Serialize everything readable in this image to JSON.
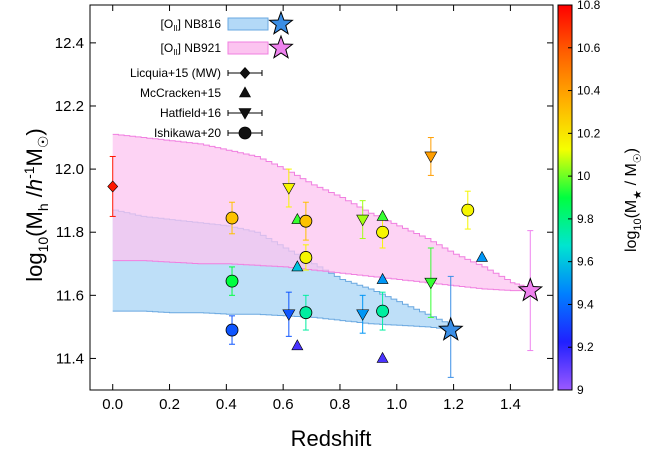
{
  "chart_data": {
    "type": "scatter",
    "xlabel": "Redshift",
    "ylabel_parts": {
      "a": "log",
      "b": "10",
      "c": "(M",
      "d": "h",
      "e": " /",
      "f": "h",
      "g": "-1",
      "h": "M",
      "i": "☉",
      "j": ")"
    },
    "xlim": [
      -0.08,
      1.55
    ],
    "ylim": [
      11.3,
      12.52
    ],
    "xticks": [
      "0.0",
      "0.2",
      "0.4",
      "0.6",
      "0.8",
      "1.0",
      "1.2",
      "1.4"
    ],
    "xtick_values": [
      0,
      0.2,
      0.4,
      0.6,
      0.8,
      1.0,
      1.2,
      1.4
    ],
    "yticks": [
      "11.4",
      "11.6",
      "11.8",
      "12.0",
      "12.2",
      "12.4"
    ],
    "ytick_values": [
      11.4,
      11.6,
      11.8,
      12.0,
      12.2,
      12.4
    ],
    "colorbar": {
      "label_parts": {
        "a": "log",
        "b": "10",
        "c": "(M",
        "d": "★",
        "e": " / M",
        "f": "☉",
        "g": ")"
      },
      "range": [
        9,
        10.8
      ],
      "ticks": [
        "9",
        "9.2",
        "9.4",
        "9.6",
        "9.8",
        "10",
        "10.2",
        "10.4",
        "10.6",
        "10.8"
      ],
      "tick_values": [
        9,
        9.2,
        9.4,
        9.6,
        9.8,
        10,
        10.2,
        10.4,
        10.6,
        10.8
      ],
      "colors": [
        "#9b59ff",
        "#2020ff",
        "#0080ff",
        "#00e5d0",
        "#00ff40",
        "#f5ff00",
        "#ffb000",
        "#ff6000",
        "#ff0000"
      ]
    },
    "legend": {
      "position": "top-left",
      "entries": [
        {
          "pre": "[O",
          "sub": "II",
          "post": "] NB816",
          "kind": "band-star",
          "fill": "#b3d9f7",
          "stroke": "#6aa8e0",
          "star": "#3a8ee6"
        },
        {
          "pre": "[O",
          "sub": "II",
          "post": "] NB921",
          "kind": "band-star",
          "fill": "#fcc4f0",
          "stroke": "#f07fe0",
          "star": "#ee82ee"
        },
        {
          "pre": "Licquia+15 (MW)",
          "sub": "",
          "post": "",
          "kind": "diamond"
        },
        {
          "pre": "McCracken+15",
          "sub": "",
          "post": "",
          "kind": "triangle-up"
        },
        {
          "pre": "Hatfield+16",
          "sub": "",
          "post": "",
          "kind": "triangle-down"
        },
        {
          "pre": "Ishikawa+20",
          "sub": "",
          "post": "",
          "kind": "circle"
        }
      ]
    },
    "bands": [
      {
        "name": "[OII] NB816",
        "fill": "#b3d9f7",
        "stroke": "#6aa8e0",
        "x": [
          0.0,
          0.1,
          0.2,
          0.3,
          0.4,
          0.5,
          0.6,
          0.7,
          0.8,
          0.9,
          1.0,
          1.1,
          1.2
        ],
        "upper": [
          11.87,
          11.85,
          11.84,
          11.83,
          11.82,
          11.8,
          11.75,
          11.7,
          11.65,
          11.62,
          11.58,
          11.54,
          11.5
        ],
        "lower": [
          11.55,
          11.55,
          11.545,
          11.545,
          11.54,
          11.54,
          11.535,
          11.53,
          11.52,
          11.51,
          11.505,
          11.5,
          11.49
        ]
      },
      {
        "name": "[OII] NB921",
        "fill": "#fcc4f0",
        "stroke": "#f07fe0",
        "x": [
          0.0,
          0.1,
          0.2,
          0.3,
          0.4,
          0.5,
          0.6,
          0.7,
          0.8,
          0.9,
          1.0,
          1.1,
          1.2,
          1.3,
          1.4,
          1.48
        ],
        "upper": [
          12.11,
          12.1,
          12.09,
          12.08,
          12.06,
          12.04,
          12.0,
          11.95,
          11.91,
          11.86,
          11.82,
          11.78,
          11.73,
          11.69,
          11.64,
          11.62
        ],
        "lower": [
          11.71,
          11.71,
          11.705,
          11.7,
          11.7,
          11.695,
          11.69,
          11.68,
          11.67,
          11.66,
          11.65,
          11.64,
          11.63,
          11.62,
          11.615,
          11.615
        ]
      }
    ],
    "stars": [
      {
        "series": "[OII] NB816",
        "x": 1.19,
        "y": 11.49,
        "yerr_lo": 0.15,
        "yerr_hi": 0.17,
        "color": "#3a8ee6"
      },
      {
        "series": "[OII] NB921",
        "x": 1.47,
        "y": 11.615,
        "yerr_lo": 0.19,
        "yerr_hi": 0.19,
        "color": "#ee82ee"
      }
    ],
    "series": [
      {
        "name": "Licquia+15 (MW)",
        "marker": "diamond",
        "points": [
          {
            "x": 0.0,
            "y": 11.945,
            "mstar": 10.75,
            "yerr": 0.095
          }
        ]
      },
      {
        "name": "McCracken+15",
        "marker": "triangle-up",
        "points": [
          {
            "x": 0.65,
            "y": 11.84,
            "mstar": 9.95
          },
          {
            "x": 0.95,
            "y": 11.85,
            "mstar": 9.95
          },
          {
            "x": 0.65,
            "y": 11.69,
            "mstar": 9.6
          },
          {
            "x": 0.95,
            "y": 11.65,
            "mstar": 9.5
          },
          {
            "x": 1.3,
            "y": 11.72,
            "mstar": 9.5
          },
          {
            "x": 0.65,
            "y": 11.44,
            "mstar": 9.15
          },
          {
            "x": 0.95,
            "y": 11.4,
            "mstar": 9.15
          }
        ]
      },
      {
        "name": "Hatfield+16",
        "marker": "triangle-down",
        "points": [
          {
            "x": 0.62,
            "y": 11.94,
            "mstar": 10.15,
            "yerr": 0.06
          },
          {
            "x": 1.12,
            "y": 12.04,
            "mstar": 10.4,
            "yerr": 0.06
          },
          {
            "x": 0.88,
            "y": 11.84,
            "mstar": 10.05,
            "yerr": 0.06
          },
          {
            "x": 1.12,
            "y": 11.64,
            "mstar": 9.95,
            "yerr": 0.11
          },
          {
            "x": 0.62,
            "y": 11.54,
            "mstar": 9.35,
            "yerr": 0.07
          },
          {
            "x": 0.88,
            "y": 11.54,
            "mstar": 9.5,
            "yerr": 0.06
          }
        ]
      },
      {
        "name": "Ishikawa+20",
        "marker": "circle",
        "points": [
          {
            "x": 0.42,
            "y": 11.845,
            "mstar": 10.3,
            "yerr": 0.05
          },
          {
            "x": 0.68,
            "y": 11.835,
            "mstar": 10.3,
            "yerr": 0.06
          },
          {
            "x": 0.95,
            "y": 11.8,
            "mstar": 10.15,
            "yerr": 0.05
          },
          {
            "x": 1.25,
            "y": 11.87,
            "mstar": 10.15,
            "yerr": 0.06
          },
          {
            "x": 0.68,
            "y": 11.72,
            "mstar": 10.15,
            "yerr": 0.04
          },
          {
            "x": 0.42,
            "y": 11.645,
            "mstar": 9.9,
            "yerr": 0.045
          },
          {
            "x": 0.68,
            "y": 11.545,
            "mstar": 9.75,
            "yerr": 0.055
          },
          {
            "x": 0.95,
            "y": 11.55,
            "mstar": 9.75,
            "yerr": 0.06
          },
          {
            "x": 0.42,
            "y": 11.49,
            "mstar": 9.35,
            "yerr": 0.045
          }
        ]
      }
    ]
  }
}
